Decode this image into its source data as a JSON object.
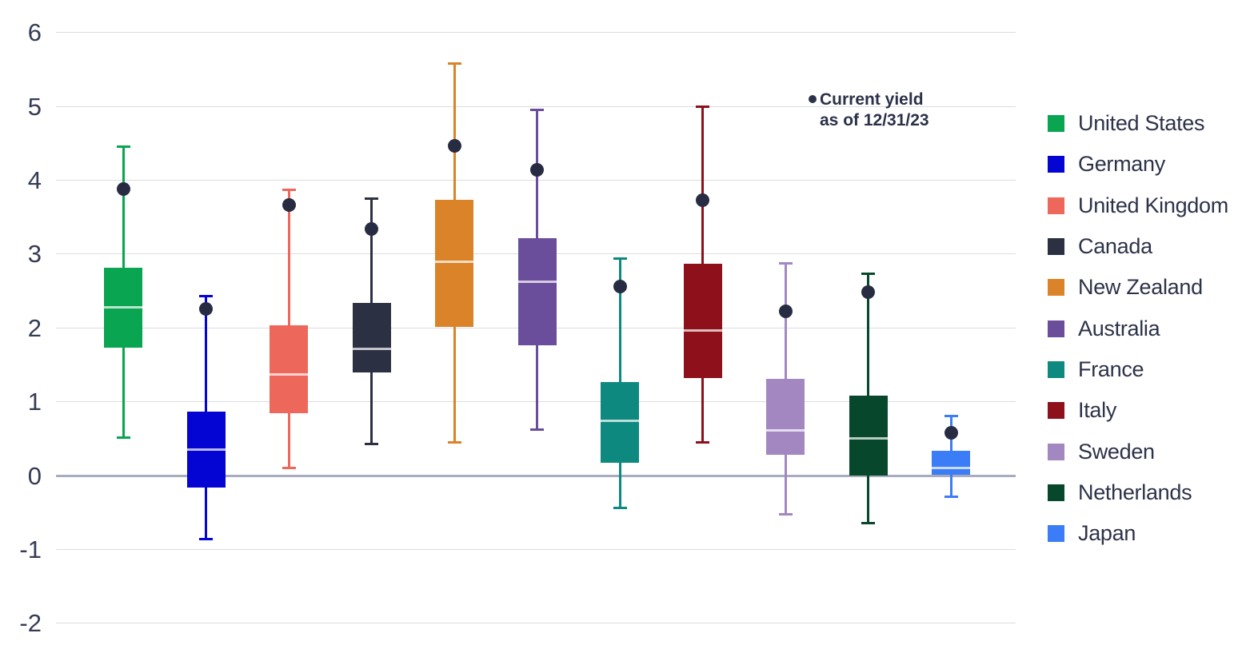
{
  "chart_data": {
    "type": "boxplot",
    "title": "",
    "xlabel": "",
    "ylabel": "",
    "ylim": [
      -2,
      6
    ],
    "yticks": [
      6,
      5,
      4,
      3,
      2,
      1,
      0,
      -1,
      -2
    ],
    "grid": "horizontal",
    "legend_position": "right",
    "annotation": {
      "marker": "dot",
      "line1": "Current yield",
      "line2": "as of 12/31/23"
    },
    "colors": {
      "current_yield_dot": "#272c42",
      "gridline": "#dbdce2",
      "zero_line": "#a7acbe",
      "tick_text": "#343b54",
      "legend_text": "#2c3248",
      "median_line": "rgba(255,255,255,0.72)"
    },
    "series": [
      {
        "name": "United States",
        "color": "#0aa551",
        "whisker_low": 0.52,
        "q1": 1.73,
        "median": 2.28,
        "q3": 2.81,
        "whisker_high": 4.45,
        "current_yield": 3.88
      },
      {
        "name": "Germany",
        "color": "#0404d3",
        "whisker_low": -0.86,
        "q1": -0.16,
        "median": 0.35,
        "q3": 0.87,
        "whisker_high": 2.43,
        "current_yield": 2.26
      },
      {
        "name": "United Kingdom",
        "color": "#ed685b",
        "whisker_low": 0.1,
        "q1": 0.84,
        "median": 1.37,
        "q3": 2.04,
        "whisker_high": 3.87,
        "current_yield": 3.66
      },
      {
        "name": "Canada",
        "color": "#2b3042",
        "whisker_low": 0.43,
        "q1": 1.4,
        "median": 1.72,
        "q3": 2.34,
        "whisker_high": 3.75,
        "current_yield": 3.34
      },
      {
        "name": "New Zealand",
        "color": "#db8328",
        "whisker_low": 0.45,
        "q1": 2.01,
        "median": 2.9,
        "q3": 3.73,
        "whisker_high": 5.58,
        "current_yield": 4.46
      },
      {
        "name": "Australia",
        "color": "#6b4e9b",
        "whisker_low": 0.62,
        "q1": 1.77,
        "median": 2.62,
        "q3": 3.22,
        "whisker_high": 4.95,
        "current_yield": 4.14
      },
      {
        "name": "France",
        "color": "#0d897f",
        "whisker_low": -0.44,
        "q1": 0.17,
        "median": 0.74,
        "q3": 1.27,
        "whisker_high": 2.94,
        "current_yield": 2.56
      },
      {
        "name": "Italy",
        "color": "#8d101b",
        "whisker_low": 0.45,
        "q1": 1.32,
        "median": 1.96,
        "q3": 2.87,
        "whisker_high": 5.0,
        "current_yield": 3.73
      },
      {
        "name": "Sweden",
        "color": "#a287c1",
        "whisker_low": -0.52,
        "q1": 0.28,
        "median": 0.61,
        "q3": 1.31,
        "whisker_high": 2.87,
        "current_yield": 2.22
      },
      {
        "name": "Netherlands",
        "color": "#07482c",
        "whisker_low": -0.64,
        "q1": 0.0,
        "median": 0.5,
        "q3": 1.08,
        "whisker_high": 2.73,
        "current_yield": 2.48
      },
      {
        "name": "Japan",
        "color": "#3b7df6",
        "whisker_low": -0.29,
        "q1": 0.01,
        "median": 0.1,
        "q3": 0.34,
        "whisker_high": 0.81,
        "current_yield": 0.58
      }
    ]
  }
}
